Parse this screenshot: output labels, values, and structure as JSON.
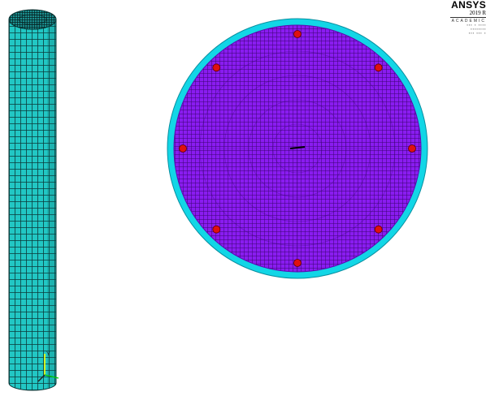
{
  "colors": {
    "mesh_fill": "#22c7c4",
    "mesh_lines": "#0b3a3a",
    "section_fill": "#8a1cf0",
    "section_lines": "#3a0470",
    "section_rim": "#12d6e6",
    "marker_fill": "#e01010",
    "triad_y": "#ffff00",
    "triad_x": "#00ff00",
    "triad_z": "#222222"
  },
  "brand": {
    "logo": "ANSYS",
    "release": "2019 R",
    "edition": "ACADEMIC"
  },
  "cylinder_view": {
    "triad_axis_label": "Y"
  },
  "section_view": {
    "marker_count": 8
  }
}
